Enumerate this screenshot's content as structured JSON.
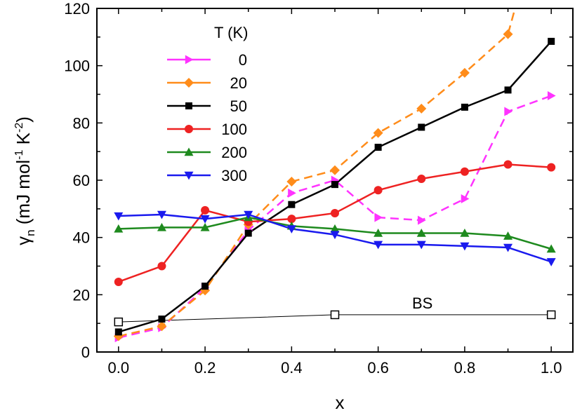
{
  "chart_data": {
    "type": "line",
    "xlabel": "x",
    "ylabel": {
      "main": "γ",
      "sub": "n",
      "units_open": " (mJ mol",
      "exp1": "-1",
      "units_mid": " K",
      "exp2": "-2",
      "units_close": ")"
    },
    "xlim": [
      -0.05,
      1.05
    ],
    "ylim": [
      0,
      120
    ],
    "xticks": [
      "0.0",
      "0.2",
      "0.4",
      "0.6",
      "0.8",
      "1.0"
    ],
    "yticks": [
      "0",
      "20",
      "40",
      "60",
      "80",
      "100",
      "120"
    ],
    "legend_title": "T (K)",
    "legend_position": "top-left",
    "series": [
      {
        "name": "0",
        "color": "#ff33ff",
        "marker": "triangle-right",
        "dash": true,
        "x": [
          0.0,
          0.1,
          0.2,
          0.3,
          0.4,
          0.5,
          0.6,
          0.7,
          0.8,
          0.9,
          1.0
        ],
        "y": [
          5,
          8.5,
          22.5,
          42.5,
          55.5,
          60,
          47,
          46,
          53.5,
          84,
          89.5
        ]
      },
      {
        "name": "20",
        "color": "#ff8c1a",
        "marker": "diamond",
        "dash": true,
        "x": [
          0.0,
          0.1,
          0.2,
          0.3,
          0.4,
          0.5,
          0.6,
          0.7,
          0.8,
          0.9,
          0.92
        ],
        "y": [
          5.5,
          9,
          21.5,
          44.5,
          59.5,
          63.5,
          76.5,
          85,
          97.5,
          111,
          122
        ]
      },
      {
        "name": "50",
        "color": "#000000",
        "marker": "square",
        "dash": false,
        "x": [
          0.0,
          0.1,
          0.2,
          0.3,
          0.4,
          0.5,
          0.6,
          0.7,
          0.8,
          0.9,
          1.0
        ],
        "y": [
          7,
          11.5,
          23,
          41.5,
          51.5,
          58.5,
          71.5,
          78.5,
          85.5,
          91.5,
          108.5
        ]
      },
      {
        "name": "100",
        "color": "#ee2222",
        "marker": "circle",
        "dash": false,
        "x": [
          0.0,
          0.1,
          0.2,
          0.3,
          0.4,
          0.5,
          0.6,
          0.7,
          0.8,
          0.9,
          1.0
        ],
        "y": [
          24.5,
          30,
          49.5,
          45.5,
          46.5,
          48.5,
          56.5,
          60.5,
          63,
          65.5,
          64.5
        ]
      },
      {
        "name": "200",
        "color": "#1e8a1e",
        "marker": "triangle-up",
        "dash": false,
        "x": [
          0.0,
          0.1,
          0.2,
          0.3,
          0.4,
          0.5,
          0.6,
          0.7,
          0.8,
          0.9,
          1.0
        ],
        "y": [
          43,
          43.5,
          43.5,
          47,
          44,
          43,
          41.5,
          41.5,
          41.5,
          40.5,
          36
        ]
      },
      {
        "name": "300",
        "color": "#1a1aee",
        "marker": "triangle-down",
        "dash": false,
        "x": [
          0.0,
          0.1,
          0.2,
          0.3,
          0.4,
          0.5,
          0.6,
          0.7,
          0.8,
          0.9,
          1.0
        ],
        "y": [
          47.5,
          48,
          46.5,
          48,
          43,
          41,
          37.5,
          37.5,
          37,
          36.5,
          31.5
        ]
      }
    ],
    "reference": {
      "name": "BS",
      "color": "#000000",
      "marker": "open-square",
      "x": [
        0.0,
        0.5,
        1.0
      ],
      "y": [
        10.5,
        13,
        13
      ]
    }
  }
}
